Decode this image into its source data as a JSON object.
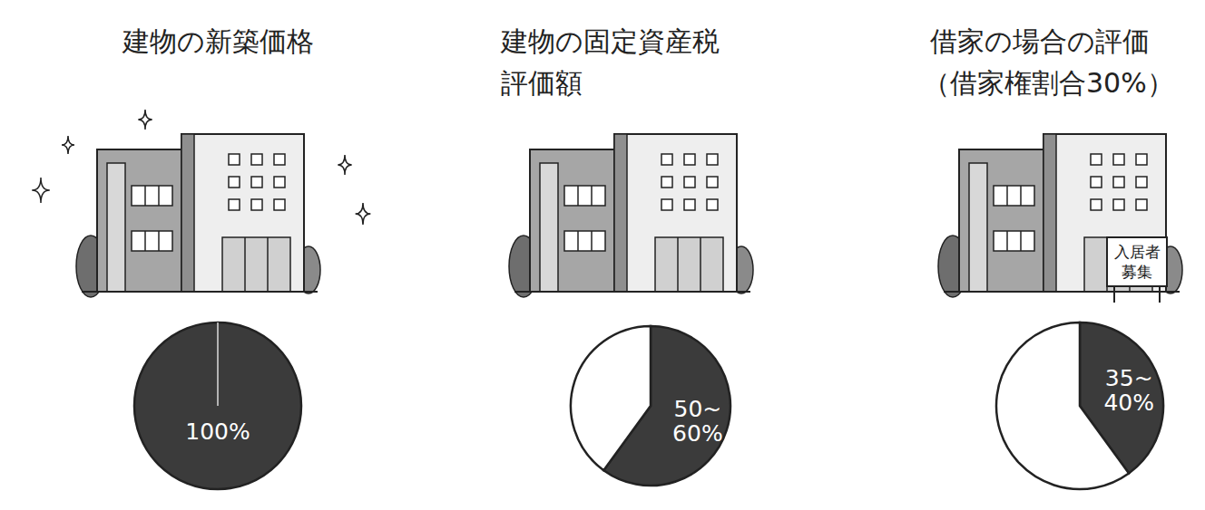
{
  "chart_data": [
    {
      "type": "pie",
      "title": "建物の新築価格",
      "values": [
        100
      ],
      "colors": [
        "#3b3b3b"
      ],
      "data_labels": true,
      "value_labels": [
        "100%"
      ]
    },
    {
      "type": "pie",
      "title": "建物の固定資産税評価額",
      "values": [
        60,
        40
      ],
      "colors": [
        "#3b3b3b",
        "#ffffff"
      ],
      "data_labels": true,
      "value_labels": [
        "50~60%",
        null
      ]
    },
    {
      "type": "pie",
      "title": "借家の場合の評価",
      "subtitle": "（借家権割合30%）",
      "annotations": [
        "入居者募集"
      ],
      "values": [
        40,
        60
      ],
      "colors": [
        "#3b3b3b",
        "#ffffff"
      ],
      "data_labels": true,
      "value_labels": [
        "35~40%",
        null
      ]
    }
  ]
}
